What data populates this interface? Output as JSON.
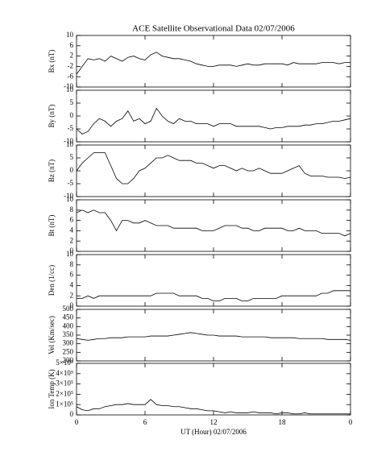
{
  "title": "ACE Satellite Observational Data   02/07/2006",
  "chart_data": [
    {
      "type": "line",
      "ylabel": "Bx (nT)",
      "color": "#000000",
      "ylim": [
        -10,
        10
      ],
      "yticks": [
        -10,
        -6,
        -2,
        2,
        6,
        10
      ],
      "x": [
        0,
        0.5,
        1,
        1.5,
        2,
        2.5,
        3,
        3.5,
        4,
        4.5,
        5,
        5.5,
        6,
        6.5,
        7,
        7.5,
        8,
        8.5,
        9,
        9.5,
        10,
        10.5,
        11,
        11.5,
        12,
        12.5,
        13,
        13.5,
        14,
        14.5,
        15,
        15.5,
        16,
        16.5,
        17,
        17.5,
        18,
        18.5,
        19,
        19.5,
        20,
        20.5,
        21,
        21.5,
        22,
        22.5,
        23,
        23.5,
        24
      ],
      "values": [
        -5,
        -2,
        1,
        0.5,
        1,
        0,
        2,
        1,
        0,
        1.5,
        2,
        1,
        0.5,
        2.5,
        3.5,
        2,
        1.5,
        1,
        1,
        0.5,
        0,
        -1,
        -1.5,
        -2,
        -2,
        -1.5,
        -1.5,
        -1.5,
        -2,
        -1.5,
        -1,
        -1.5,
        -1.5,
        -1,
        -1,
        -1,
        -1,
        -1.5,
        -0.5,
        -1,
        -1,
        -1,
        -1,
        -0.5,
        -0.5,
        -0.5,
        -1,
        -0.5,
        -0.5
      ]
    },
    {
      "type": "line",
      "ylabel": "By (nT)",
      "color": "#000000",
      "ylim": [
        -10,
        10
      ],
      "yticks": [
        -10,
        -5,
        0,
        5,
        10
      ],
      "x": [
        0,
        0.5,
        1,
        1.5,
        2,
        2.5,
        3,
        3.5,
        4,
        4.5,
        5,
        5.5,
        6,
        6.5,
        7,
        7.5,
        8,
        8.5,
        9,
        9.5,
        10,
        10.5,
        11,
        11.5,
        12,
        12.5,
        13,
        13.5,
        14,
        14.5,
        15,
        15.5,
        16,
        16.5,
        17,
        17.5,
        18,
        18.5,
        19,
        19.5,
        20,
        20.5,
        21,
        21.5,
        22,
        22.5,
        23,
        23.5,
        24
      ],
      "values": [
        -5,
        -7,
        -6,
        -3,
        -1,
        -2,
        -4,
        -2,
        -1,
        2,
        -2,
        -1,
        -3,
        -2,
        3,
        0,
        -2,
        -3,
        -1,
        -2,
        -2,
        -3,
        -3,
        -3,
        -4,
        -3,
        -3,
        -3,
        -4,
        -4,
        -4,
        -4,
        -4,
        -4.5,
        -5,
        -4.5,
        -4.5,
        -4,
        -4,
        -4,
        -3.5,
        -3.5,
        -3,
        -3,
        -2.5,
        -2,
        -2,
        -1.5,
        -1
      ]
    },
    {
      "type": "line",
      "ylabel": "Bz (nT)",
      "color": "#000000",
      "ylim": [
        -10,
        10
      ],
      "yticks": [
        -10,
        -5,
        0,
        5,
        10
      ],
      "x": [
        0,
        0.5,
        1,
        1.5,
        2,
        2.5,
        3,
        3.5,
        4,
        4.5,
        5,
        5.5,
        6,
        6.5,
        7,
        7.5,
        8,
        8.5,
        9,
        9.5,
        10,
        10.5,
        11,
        11.5,
        12,
        12.5,
        13,
        13.5,
        14,
        14.5,
        15,
        15.5,
        16,
        16.5,
        17,
        17.5,
        18,
        18.5,
        19,
        19.5,
        20,
        20.5,
        21,
        21.5,
        22,
        22.5,
        23,
        23.5,
        24
      ],
      "values": [
        0,
        3,
        5,
        7,
        7,
        7,
        2,
        -3,
        -5,
        -5,
        -3,
        0,
        1,
        3,
        5,
        5,
        6,
        5,
        4,
        4,
        4,
        3,
        3,
        2,
        1,
        2,
        2,
        1,
        0,
        1,
        0,
        0,
        1,
        0,
        -1,
        -1,
        -1,
        0,
        1,
        2,
        -1,
        -2,
        -2,
        -2,
        -2.5,
        -2.5,
        -2.5,
        -3,
        -2.5
      ]
    },
    {
      "type": "line",
      "ylabel": "Bt (nT)",
      "color": "#000000",
      "ylim": [
        0,
        10
      ],
      "yticks": [
        0,
        2,
        4,
        6,
        8,
        10
      ],
      "x": [
        0,
        0.5,
        1,
        1.5,
        2,
        2.5,
        3,
        3.5,
        4,
        4.5,
        5,
        5.5,
        6,
        6.5,
        7,
        7.5,
        8,
        8.5,
        9,
        9.5,
        10,
        10.5,
        11,
        11.5,
        12,
        12.5,
        13,
        13.5,
        14,
        14.5,
        15,
        15.5,
        16,
        16.5,
        17,
        17.5,
        18,
        18.5,
        19,
        19.5,
        20,
        20.5,
        21,
        21.5,
        22,
        22.5,
        23,
        23.5,
        24
      ],
      "values": [
        7.5,
        8,
        7.5,
        8,
        7.5,
        7.5,
        6,
        4,
        6,
        6,
        5.5,
        5.5,
        6,
        5.5,
        5,
        5,
        5,
        4.5,
        4.5,
        4.5,
        4.5,
        4.5,
        4,
        4,
        4,
        4.5,
        5,
        5,
        5,
        4.5,
        4.5,
        4,
        4,
        4.5,
        4.5,
        4.5,
        4.5,
        4,
        4,
        4.5,
        4,
        4,
        4,
        3.5,
        3.5,
        3.5,
        3.5,
        3,
        3.5
      ]
    },
    {
      "type": "line",
      "ylabel": "Den (1/cc)",
      "color": "#000000",
      "ylim": [
        0,
        10
      ],
      "yticks": [
        0,
        2,
        4,
        6,
        8,
        10
      ],
      "x": [
        0,
        0.5,
        1,
        1.5,
        2,
        2.5,
        3,
        3.5,
        4,
        4.5,
        5,
        5.5,
        6,
        6.5,
        7,
        7.5,
        8,
        8.5,
        9,
        9.5,
        10,
        10.5,
        11,
        11.5,
        12,
        12.5,
        13,
        13.5,
        14,
        14.5,
        15,
        15.5,
        16,
        16.5,
        17,
        17.5,
        18,
        18.5,
        19,
        19.5,
        20,
        20.5,
        21,
        21.5,
        22,
        22.5,
        23,
        23.5,
        24
      ],
      "values": [
        1.5,
        1.5,
        2,
        1.5,
        2,
        2,
        2,
        2,
        2,
        2,
        2,
        2,
        2,
        2,
        2.5,
        2.5,
        2.5,
        2.5,
        2,
        2,
        2,
        2,
        1.5,
        1.5,
        1,
        1,
        1.5,
        1.5,
        1.5,
        1,
        1,
        1.5,
        1.5,
        1.5,
        1.5,
        1.5,
        2,
        2,
        2,
        2,
        2,
        2,
        2,
        2.5,
        2.5,
        3,
        3,
        3,
        3
      ]
    },
    {
      "type": "line",
      "ylabel": "Vel (Km/sec)",
      "color": "#000000",
      "ylim": [
        200,
        500
      ],
      "yticks": [
        200,
        250,
        300,
        350,
        400,
        450,
        500
      ],
      "x": [
        0,
        0.5,
        1,
        1.5,
        2,
        2.5,
        3,
        3.5,
        4,
        4.5,
        5,
        5.5,
        6,
        6.5,
        7,
        7.5,
        8,
        8.5,
        9,
        9.5,
        10,
        10.5,
        11,
        11.5,
        12,
        12.5,
        13,
        13.5,
        14,
        14.5,
        15,
        15.5,
        16,
        16.5,
        17,
        17.5,
        18,
        18.5,
        19,
        19.5,
        20,
        20.5,
        21,
        21.5,
        22,
        22.5,
        23,
        23.5,
        24
      ],
      "values": [
        330,
        325,
        320,
        325,
        330,
        330,
        335,
        335,
        335,
        340,
        340,
        340,
        340,
        345,
        345,
        345,
        345,
        350,
        355,
        360,
        365,
        360,
        355,
        350,
        350,
        345,
        345,
        345,
        345,
        340,
        340,
        340,
        340,
        340,
        335,
        335,
        335,
        335,
        335,
        330,
        330,
        330,
        330,
        330,
        325,
        325,
        325,
        325,
        320
      ]
    },
    {
      "type": "line",
      "ylabel": "Ion Temp (K)",
      "xlabel": "UT (Hour)   02/07/2006",
      "color": "#000000",
      "ylim": [
        0,
        500000
      ],
      "yticks": [
        0,
        {
          "value": 100000,
          "label": "1×10⁵"
        },
        {
          "value": 200000,
          "label": "2×10⁵"
        },
        {
          "value": 300000,
          "label": "3×10⁵"
        },
        {
          "value": 400000,
          "label": "4×10⁵"
        },
        {
          "value": 500000,
          "label": "5×10⁵"
        }
      ],
      "xlim": [
        0,
        24
      ],
      "xticks": [
        0,
        6,
        12,
        18,
        {
          "value": 24,
          "label": "0"
        }
      ],
      "x": [
        0,
        0.5,
        1,
        1.5,
        2,
        2.5,
        3,
        3.5,
        4,
        4.5,
        5,
        5.5,
        6,
        6.5,
        7,
        7.5,
        8,
        8.5,
        9,
        9.5,
        10,
        10.5,
        11,
        11.5,
        12,
        12.5,
        13,
        13.5,
        14,
        14.5,
        15,
        15.5,
        16,
        16.5,
        17,
        17.5,
        18,
        18.5,
        19,
        19.5,
        20,
        20.5,
        21,
        21.5,
        22,
        22.5,
        23,
        23.5,
        24
      ],
      "values": [
        80000,
        50000,
        40000,
        60000,
        60000,
        80000,
        90000,
        100000,
        100000,
        110000,
        100000,
        100000,
        100000,
        150000,
        100000,
        90000,
        90000,
        80000,
        80000,
        70000,
        60000,
        60000,
        50000,
        40000,
        40000,
        30000,
        20000,
        30000,
        20000,
        20000,
        20000,
        30000,
        20000,
        20000,
        20000,
        10000,
        20000,
        20000,
        10000,
        10000,
        20000,
        10000,
        10000,
        10000,
        10000,
        10000,
        10000,
        10000,
        10000
      ]
    }
  ]
}
